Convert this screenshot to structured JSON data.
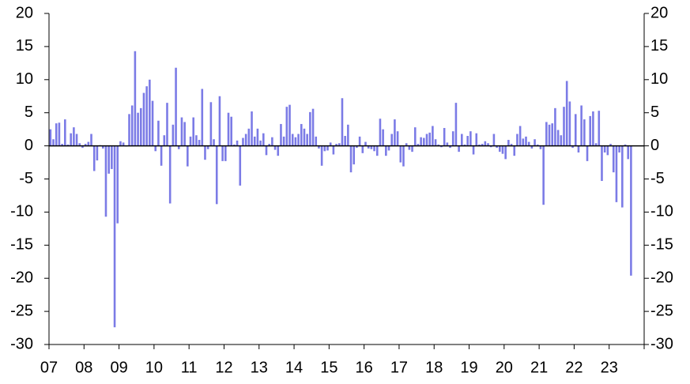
{
  "chart_data": {
    "type": "bar",
    "color": "#7b7be6",
    "categories": [
      "07",
      null,
      null,
      null,
      null,
      null,
      null,
      null,
      null,
      null,
      null,
      null,
      "08",
      null,
      null,
      null,
      null,
      null,
      null,
      null,
      null,
      null,
      null,
      null,
      "09",
      null,
      null,
      null,
      null,
      null,
      null,
      null,
      null,
      null,
      null,
      null,
      "10",
      null,
      null,
      null,
      null,
      null,
      null,
      null,
      null,
      null,
      null,
      null,
      "11",
      null,
      null,
      null,
      null,
      null,
      null,
      null,
      null,
      null,
      null,
      null,
      "12",
      null,
      null,
      null,
      null,
      null,
      null,
      null,
      null,
      null,
      null,
      null,
      "13",
      null,
      null,
      null,
      null,
      null,
      null,
      null,
      null,
      null,
      null,
      null,
      "14",
      null,
      null,
      null,
      null,
      null,
      null,
      null,
      null,
      null,
      null,
      null,
      "15",
      null,
      null,
      null,
      null,
      null,
      null,
      null,
      null,
      null,
      null,
      null,
      "16",
      null,
      null,
      null,
      null,
      null,
      null,
      null,
      null,
      null,
      null,
      null,
      "17",
      null,
      null,
      null,
      null,
      null,
      null,
      null,
      null,
      null,
      null,
      null,
      "18",
      null,
      null,
      null,
      null,
      null,
      null,
      null,
      null,
      null,
      null,
      null,
      "19",
      null,
      null,
      null,
      null,
      null,
      null,
      null,
      null,
      null,
      null,
      null,
      "20",
      null,
      null,
      null,
      null,
      null,
      null,
      null,
      null,
      null,
      null,
      null,
      "21",
      null,
      null,
      null,
      null,
      null,
      null,
      null,
      null,
      null,
      null,
      null,
      "22",
      null,
      null,
      null,
      null,
      null,
      null,
      null,
      null,
      null,
      null,
      null,
      "23",
      null,
      null,
      null,
      null,
      null,
      null,
      null,
      null,
      null,
      null,
      null
    ],
    "values": [
      2.5,
      1.0,
      3.4,
      3.5,
      0.3,
      4.0,
      0.2,
      1.9,
      2.8,
      1.8,
      0.4,
      -0.3,
      0.3,
      0.6,
      1.8,
      -3.8,
      -2.2,
      0.1,
      -0.4,
      -10.7,
      -4.2,
      -3.5,
      -27.4,
      -11.7,
      0.7,
      0.5,
      -0.1,
      4.8,
      6.1,
      14.3,
      5.0,
      5.7,
      8.0,
      9.0,
      10.0,
      6.8,
      -0.8,
      3.8,
      -3.0,
      1.6,
      6.5,
      -8.7,
      3.2,
      11.8,
      -0.5,
      4.3,
      3.6,
      -3.1,
      1.4,
      4.3,
      1.6,
      0.9,
      8.6,
      -2.1,
      -0.5,
      6.6,
      1.0,
      -8.8,
      7.5,
      -2.3,
      -2.3,
      5.0,
      4.4,
      0.2,
      0.8,
      -6.0,
      1.2,
      1.8,
      2.6,
      5.2,
      1.4,
      2.6,
      0.8,
      1.9,
      -1.4,
      0.3,
      1.3,
      -0.6,
      -1.5,
      3.3,
      1.4,
      5.9,
      6.2,
      1.8,
      1.3,
      1.8,
      3.3,
      2.6,
      1.8,
      5.1,
      5.6,
      1.4,
      -0.4,
      -3.0,
      -0.8,
      -0.7,
      0.5,
      -1.3,
      0.3,
      0.4,
      7.2,
      1.5,
      3.2,
      -4.0,
      -2.8,
      -0.3,
      1.4,
      -1.1,
      0.6,
      -0.4,
      -0.5,
      -0.8,
      -1.5,
      4.1,
      2.5,
      -1.5,
      -0.7,
      1.8,
      4.0,
      2.2,
      -2.5,
      -3.1,
      0.4,
      -0.6,
      -0.9,
      2.8,
      0.3,
      1.3,
      1.2,
      1.8,
      2.0,
      3.0,
      1.0,
      0.2,
      -0.2,
      2.7,
      0.5,
      -0.3,
      2.2,
      6.5,
      -0.9,
      1.8,
      0.2,
      1.5,
      2.2,
      -1.3,
      1.9,
      0.2,
      0.3,
      0.7,
      0.4,
      -0.2,
      1.8,
      -0.3,
      -0.9,
      -1.2,
      -2.0,
      0.9,
      0.3,
      -1.5,
      1.8,
      3.0,
      1.1,
      1.4,
      0.6,
      -0.4,
      1.0,
      0.2,
      -0.5,
      -8.9,
      3.6,
      3.2,
      3.4,
      5.7,
      2.4,
      1.6,
      5.9,
      9.8,
      6.7,
      -0.3,
      4.8,
      -1.0,
      6.1,
      4.0,
      -2.3,
      4.5,
      5.2,
      0.4,
      5.3,
      -5.3,
      -1.0,
      -1.4,
      0.3,
      -4.0,
      -8.5,
      -1.0,
      -9.3,
      0.2,
      -2.0,
      -19.6,
      null,
      null,
      null,
      null
    ],
    "ylim": [
      -30,
      20
    ],
    "yticks": [
      -30,
      -25,
      -20,
      -15,
      -10,
      -5,
      0,
      5,
      10,
      15,
      20
    ]
  }
}
